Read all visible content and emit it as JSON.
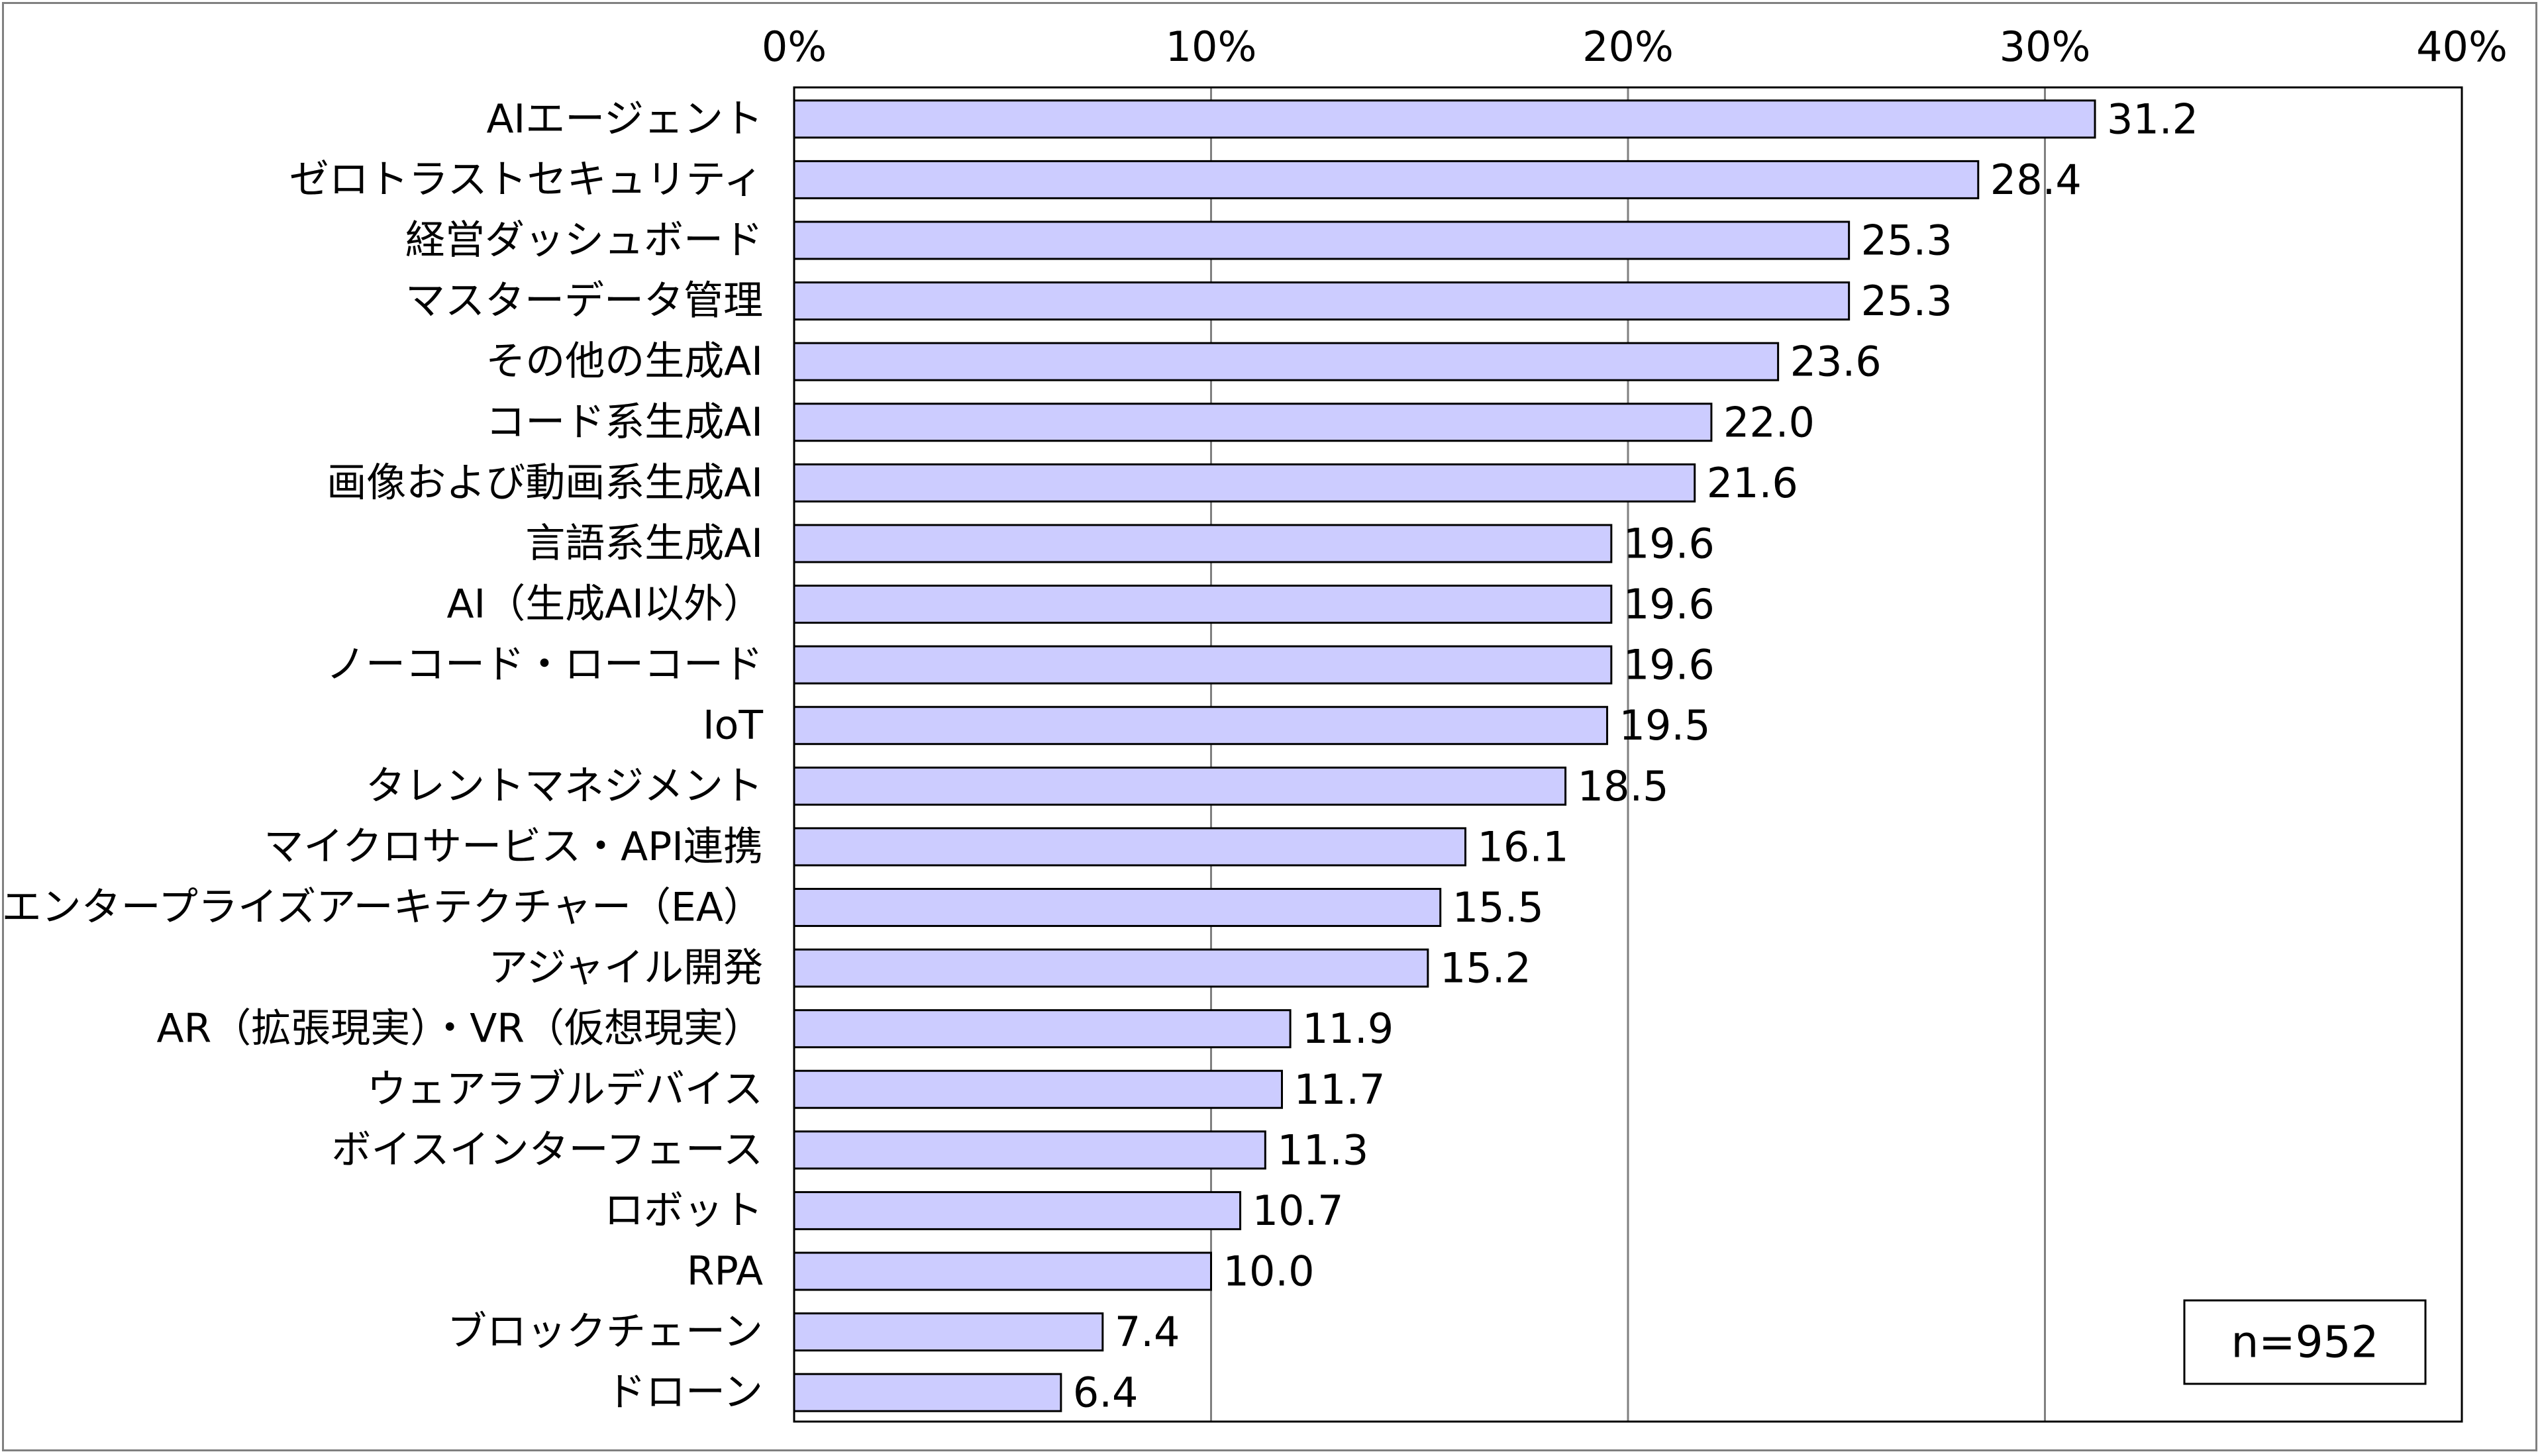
{
  "chart_data": {
    "type": "bar",
    "orientation": "horizontal",
    "title": "",
    "xlabel": "",
    "ylabel": "",
    "xlim": [
      0,
      40
    ],
    "x_ticks": [
      0,
      10,
      20,
      30,
      40
    ],
    "x_tick_labels": [
      "0%",
      "10%",
      "20%",
      "30%",
      "40%"
    ],
    "x_axis_position": "top",
    "grid": true,
    "bar_color": "#ccccff",
    "bar_edge_color": "#000000",
    "grid_color": "#808080",
    "categories": [
      "AIエージェント",
      "ゼロトラストセキュリティ",
      "経営ダッシュボード",
      "マスターデータ管理",
      "その他の生成AI",
      "コード系生成AI",
      "画像および動画系生成AI",
      "言語系生成AI",
      "AI（生成AI以外）",
      "ノーコード・ローコード",
      "IoT",
      "タレントマネジメント",
      "マイクロサービス・API連携",
      "エンタープライズアーキテクチャー（EA）",
      "アジャイル開発",
      "AR（拡張現実）・VR（仮想現実）",
      "ウェアラブルデバイス",
      "ボイスインターフェース",
      "ロボット",
      "RPA",
      "ブロックチェーン",
      "ドローン"
    ],
    "values": [
      31.2,
      28.4,
      25.3,
      25.3,
      23.6,
      22.0,
      21.6,
      19.6,
      19.6,
      19.6,
      19.5,
      18.5,
      16.1,
      15.5,
      15.2,
      11.9,
      11.7,
      11.3,
      10.7,
      10.0,
      7.4,
      6.4
    ],
    "value_labels": [
      "31.2",
      "28.4",
      "25.3",
      "25.3",
      "23.6",
      "22.0",
      "21.6",
      "19.6",
      "19.6",
      "19.6",
      "19.5",
      "18.5",
      "16.1",
      "15.5",
      "15.2",
      "11.9",
      "11.7",
      "11.3",
      "10.7",
      "10.0",
      "7.4",
      "6.4"
    ],
    "annotation": "n=952",
    "annotation_placement": "bottom-right"
  }
}
